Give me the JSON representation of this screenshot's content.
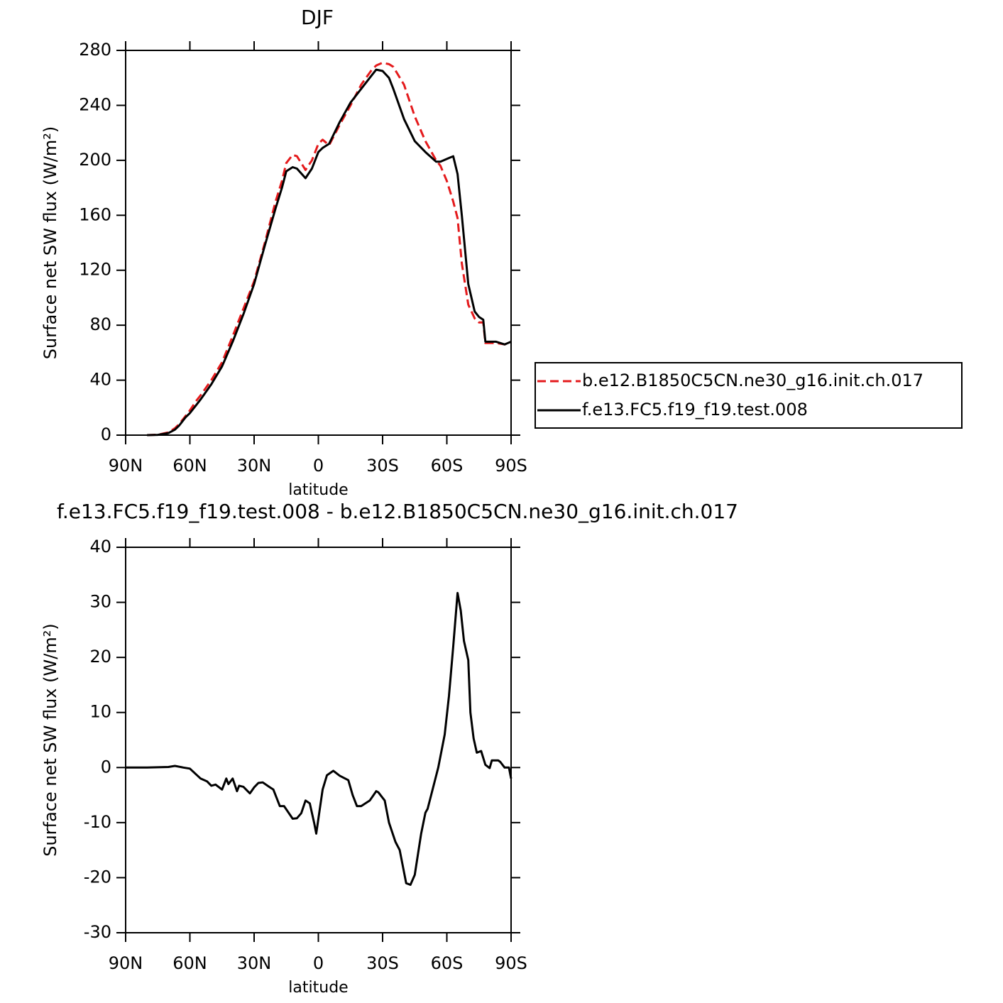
{
  "chart_data": [
    {
      "type": "line",
      "title": "DJF",
      "xlabel": "latitude",
      "ylabel": "Surface net SW flux (W/m²)",
      "x": [
        80,
        75,
        70,
        67,
        65,
        62,
        60,
        57,
        55,
        50,
        45,
        40,
        35,
        30,
        25,
        20,
        17,
        15,
        12,
        10,
        6,
        3,
        0,
        -2,
        -5,
        -10,
        -15,
        -20,
        -25,
        -27,
        -30,
        -33,
        -35,
        -40,
        -45,
        -50,
        -55,
        -57,
        -60,
        -63,
        -65,
        -67,
        -70,
        -73,
        -75,
        -77,
        -78,
        -80,
        -83,
        -87,
        -90
      ],
      "series": [
        {
          "name": "b.e12.B1850C5CN.ne30_g16.init.ch.017",
          "color": "#e41a1c",
          "dashed": true,
          "values": [
            0,
            0.3,
            2,
            5,
            8,
            14,
            18,
            25,
            29,
            40,
            53,
            72,
            92,
            112,
            140,
            170,
            185,
            198,
            204,
            203,
            193,
            200,
            212,
            215,
            211,
            226,
            240,
            255,
            266,
            269,
            271,
            270,
            268,
            255,
            232,
            214,
            200,
            196,
            185,
            170,
            158,
            125,
            95,
            85,
            82,
            82,
            67,
            67,
            67,
            66,
            68
          ]
        },
        {
          "name": "f.e13.FC5.f19_f19.test.008",
          "color": "#000000",
          "dashed": false,
          "values": [
            0,
            0.2,
            1.5,
            4,
            7,
            13,
            16,
            22,
            26,
            37,
            50,
            68,
            88,
            110,
            138,
            165,
            180,
            192,
            195,
            194,
            187,
            194,
            206,
            209,
            212,
            228,
            242,
            252,
            262,
            266,
            265,
            260,
            252,
            230,
            214,
            206,
            199,
            199,
            201,
            203,
            190,
            160,
            110,
            90,
            86,
            84,
            68,
            68,
            68,
            66,
            68
          ]
        }
      ],
      "xlim": [
        90,
        -90
      ],
      "xticks": [
        {
          "value": 90,
          "label": "90N"
        },
        {
          "value": 60,
          "label": "60N"
        },
        {
          "value": 30,
          "label": "30N"
        },
        0,
        {
          "value": -30,
          "label": "30S"
        },
        {
          "value": -60,
          "label": "60S"
        },
        {
          "value": -90,
          "label": "90S"
        }
      ],
      "ylim": [
        0,
        280
      ],
      "yticks": [
        0,
        40,
        80,
        120,
        160,
        200,
        240,
        280
      ],
      "legend": "right"
    },
    {
      "type": "line",
      "title": "f.e13.FC5.f19_f19.test.008 - b.e12.B1850C5CN.ne30_g16.init.ch.017",
      "xlabel": "latitude",
      "ylabel": "Surface net SW flux (W/m²)",
      "x": [
        90,
        80,
        70,
        67,
        63,
        60,
        55,
        52,
        50,
        48,
        45,
        43,
        42,
        40,
        38,
        37,
        35,
        32,
        30,
        28,
        26,
        23,
        21,
        18,
        16,
        12,
        10,
        8,
        6,
        4,
        2,
        1,
        -2,
        -4,
        -7,
        -10,
        -14,
        -16,
        -18,
        -20,
        -24,
        -27,
        -28,
        -31,
        -33,
        -36,
        -38,
        -41,
        -43,
        -45,
        -48,
        -50,
        -51,
        -53,
        -56,
        -59,
        -61,
        -63,
        -65,
        -66.5,
        -68,
        -70,
        -71,
        -72.5,
        -74,
        -76,
        -78,
        -80,
        -81,
        -84,
        -85,
        -87,
        -89,
        -90
      ],
      "values": [
        0,
        0,
        0.1,
        0.3,
        0,
        -0.2,
        -2,
        -2.5,
        -3.3,
        -3.1,
        -4,
        -2,
        -3,
        -2,
        -4.3,
        -3.3,
        -3.5,
        -4.7,
        -3.6,
        -2.8,
        -2.7,
        -3.5,
        -4,
        -7,
        -7,
        -9.3,
        -9.2,
        -8.3,
        -6,
        -6.5,
        -10,
        -12,
        -4,
        -1.4,
        -0.6,
        -1.5,
        -2.3,
        -5,
        -7,
        -7,
        -6,
        -4.3,
        -4.5,
        -6,
        -10,
        -13.5,
        -15,
        -21,
        -21.3,
        -19.5,
        -12,
        -8.2,
        -7.5,
        -4.5,
        0,
        6,
        13,
        22,
        31.7,
        28.5,
        23,
        19.5,
        10,
        5.3,
        2.7,
        3,
        0.5,
        -0.1,
        1.3,
        1.3,
        1,
        0,
        0,
        -2
      ],
      "color": "#000000",
      "xlim": [
        90,
        -90
      ],
      "xticks": [
        {
          "value": 90,
          "label": "90N"
        },
        {
          "value": 60,
          "label": "60N"
        },
        {
          "value": 30,
          "label": "30N"
        },
        0,
        {
          "value": -30,
          "label": "30S"
        },
        {
          "value": -60,
          "label": "60S"
        },
        {
          "value": -90,
          "label": "90S"
        }
      ],
      "ylim": [
        -30,
        40
      ],
      "yticks": [
        -30,
        -20,
        -10,
        0,
        10,
        20,
        30,
        40
      ]
    }
  ]
}
